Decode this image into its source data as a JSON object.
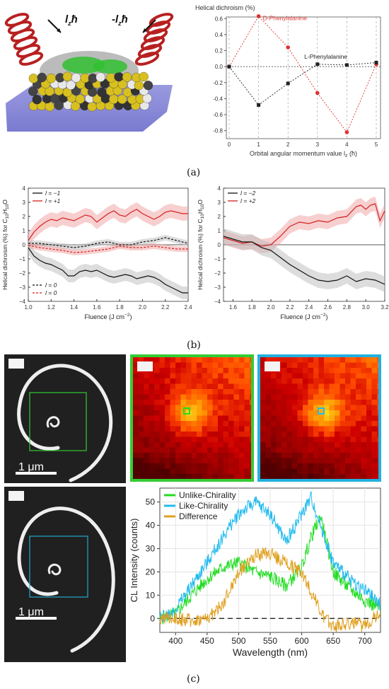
{
  "captions": {
    "a": "(a)",
    "b": "(b)",
    "c": "(c)"
  },
  "panel_a": {
    "illustration": {
      "left_label": "l",
      "left_label_sub": "z",
      "left_label_hbar": "ħ",
      "right_label": "-l",
      "right_label_sub": "z",
      "right_label_hbar": "ħ"
    },
    "chart_data": {
      "type": "line",
      "title": "Helical dichroism (%)",
      "xlabel": "Orbital angular momentum value l",
      "xlabel_sub": "z",
      "xlabel_unit": " (ħ)",
      "xlim": [
        0,
        5
      ],
      "ylim": [
        -0.9,
        0.62
      ],
      "x_ticks": [
        0,
        1,
        2,
        3,
        4,
        5
      ],
      "y_ticks": [
        -0.8,
        -0.6,
        -0.4,
        -0.2,
        0.0,
        0.2,
        0.4,
        0.6
      ],
      "y_tick_labels": [
        "-0.8",
        "-0.6",
        "-0.4",
        "-0.2",
        "0.0",
        "0.2",
        "0.4",
        "0.6"
      ],
      "series": [
        {
          "name": "D-Phenylalanine",
          "color": "#e03030",
          "x": [
            0,
            1,
            2,
            3,
            4,
            5
          ],
          "y": [
            0.0,
            0.63,
            0.24,
            -0.33,
            -0.82,
            0.03
          ]
        },
        {
          "name": "L-Phenylalanine",
          "color": "#222222",
          "x": [
            0,
            1,
            2,
            3,
            4,
            5
          ],
          "y": [
            0.0,
            -0.48,
            -0.21,
            0.03,
            0.02,
            0.05
          ]
        }
      ],
      "legend": [
        {
          "text": "D-Phenylalanine",
          "color": "#e03030"
        },
        {
          "text": "L-Phenylalanine",
          "color": "#222222"
        }
      ]
    }
  },
  "panel_b": {
    "charts": [
      {
        "type": "line",
        "ylabel": "Helical dichroism (%) for C",
        "ylabel_sub1": "10",
        "ylabel_mid": "H",
        "ylabel_sub2": "10",
        "ylabel_end": "O",
        "xlabel": "Fluence (J cm",
        "xlabel_sup": "−2",
        "xlabel_end": ")",
        "xlim": [
          1.0,
          2.4
        ],
        "ylim": [
          -4,
          4
        ],
        "x_ticks": [
          1.0,
          1.2,
          1.4,
          1.6,
          1.8,
          2.0,
          2.2,
          2.4
        ],
        "x_tick_labels": [
          "1.0",
          "1.2",
          "1.4",
          "1.6",
          "1.8",
          "2.0",
          "2.2",
          "2.4"
        ],
        "y_ticks": [
          -4,
          -3,
          -2,
          -1,
          0,
          1,
          2,
          3,
          4
        ],
        "y_tick_labels": [
          "−4",
          "−3",
          "−2",
          "−1",
          "0",
          "1",
          "2",
          "3",
          "4"
        ],
        "legend_top": [
          {
            "text": "l = −1",
            "color": "#111111"
          },
          {
            "text": "l = +1",
            "color": "#d42020"
          }
        ],
        "legend_bottom": [
          {
            "text": "l = 0",
            "color": "#111111"
          },
          {
            "text": "l = 0",
            "color": "#d42020"
          }
        ],
        "series": [
          {
            "color": "#d42020",
            "band": 0.5,
            "x": [
              1.0,
              1.05,
              1.1,
              1.15,
              1.2,
              1.25,
              1.3,
              1.35,
              1.4,
              1.45,
              1.5,
              1.55,
              1.6,
              1.65,
              1.7,
              1.75,
              1.8,
              1.85,
              1.9,
              1.95,
              2.0,
              2.05,
              2.1,
              2.15,
              2.2,
              2.25,
              2.3,
              2.35,
              2.4
            ],
            "y": [
              0.3,
              0.9,
              1.3,
              1.6,
              1.8,
              1.7,
              1.9,
              1.8,
              1.7,
              1.9,
              2.1,
              2.0,
              1.6,
              1.9,
              2.2,
              2.4,
              2.1,
              2.0,
              2.3,
              2.5,
              2.2,
              2.0,
              1.8,
              2.0,
              2.3,
              2.4,
              2.3,
              2.2,
              2.2
            ]
          },
          {
            "color": "#111111",
            "band": 0.45,
            "x": [
              1.0,
              1.05,
              1.1,
              1.15,
              1.2,
              1.25,
              1.3,
              1.35,
              1.4,
              1.45,
              1.5,
              1.55,
              1.6,
              1.65,
              1.7,
              1.75,
              1.8,
              1.85,
              1.9,
              1.95,
              2.0,
              2.05,
              2.1,
              2.15,
              2.2,
              2.25,
              2.3,
              2.35,
              2.4
            ],
            "y": [
              -0.2,
              -0.8,
              -1.1,
              -1.3,
              -1.4,
              -1.6,
              -1.8,
              -2.2,
              -2.2,
              -1.9,
              -1.8,
              -1.9,
              -1.8,
              -2.0,
              -2.2,
              -2.3,
              -2.2,
              -2.1,
              -2.2,
              -2.4,
              -2.3,
              -2.2,
              -2.3,
              -2.5,
              -2.8,
              -3.0,
              -3.2,
              -3.4,
              -3.4
            ]
          },
          {
            "color": "#111111",
            "dashed": true,
            "band": 0.2,
            "x": [
              1.0,
              1.1,
              1.2,
              1.3,
              1.4,
              1.5,
              1.6,
              1.7,
              1.8,
              1.9,
              2.0,
              2.1,
              2.2,
              2.3,
              2.4
            ],
            "y": [
              0.1,
              0.1,
              0.0,
              -0.1,
              -0.2,
              -0.1,
              0.1,
              0.2,
              0.0,
              0.0,
              0.2,
              0.3,
              0.5,
              0.3,
              0.1
            ]
          },
          {
            "color": "#d42020",
            "dashed": true,
            "band": 0.2,
            "x": [
              1.0,
              1.1,
              1.2,
              1.3,
              1.4,
              1.5,
              1.6,
              1.7,
              1.8,
              1.9,
              2.0,
              2.1,
              2.2,
              2.3,
              2.4
            ],
            "y": [
              -0.05,
              -0.2,
              -0.3,
              -0.4,
              -0.55,
              -0.5,
              -0.4,
              -0.3,
              -0.1,
              -0.2,
              -0.2,
              -0.1,
              -0.2,
              -0.3,
              -0.3
            ]
          }
        ]
      },
      {
        "type": "line",
        "ylabel": "Helical dichroism (%) for C",
        "ylabel_sub1": "10",
        "ylabel_mid": "H",
        "ylabel_sub2": "10",
        "ylabel_end": "O",
        "xlabel": "Fluence (J cm",
        "xlabel_sup": "−2",
        "xlabel_end": ")",
        "xlim": [
          1.5,
          3.2
        ],
        "ylim": [
          -4,
          4
        ],
        "x_ticks": [
          1.6,
          1.8,
          2.0,
          2.2,
          2.4,
          2.6,
          2.8,
          3.0,
          3.2
        ],
        "x_tick_labels": [
          "1.6",
          "1.8",
          "2.0",
          "2.2",
          "2.4",
          "2.6",
          "2.8",
          "3.0",
          "3.2"
        ],
        "y_ticks": [
          -4,
          -3,
          -2,
          -1,
          0,
          1,
          2,
          3,
          4
        ],
        "y_tick_labels": [
          "−4",
          "−3",
          "−2",
          "−1",
          "0",
          "1",
          "2",
          "3",
          "4"
        ],
        "legend_top": [
          {
            "text": "l = −2",
            "color": "#111111"
          },
          {
            "text": "l = +2",
            "color": "#d42020"
          }
        ],
        "series": [
          {
            "color": "#d42020",
            "band": 0.5,
            "x": [
              1.5,
              1.6,
              1.7,
              1.8,
              1.9,
              2.0,
              2.1,
              2.2,
              2.3,
              2.4,
              2.5,
              2.6,
              2.7,
              2.8,
              2.9,
              2.95,
              3.0,
              3.05,
              3.1,
              3.15,
              3.2
            ],
            "y": [
              0.5,
              0.3,
              0.1,
              0.2,
              -0.1,
              0.0,
              0.6,
              1.3,
              1.6,
              1.5,
              1.7,
              1.6,
              1.9,
              2.0,
              2.7,
              2.8,
              2.5,
              2.8,
              2.9,
              1.7,
              2.4
            ]
          },
          {
            "color": "#111111",
            "band": 0.55,
            "x": [
              1.5,
              1.6,
              1.7,
              1.8,
              1.9,
              2.0,
              2.1,
              2.2,
              2.3,
              2.4,
              2.5,
              2.6,
              2.7,
              2.8,
              2.9,
              3.0,
              3.1,
              3.2
            ],
            "y": [
              0.6,
              0.4,
              0.2,
              0.2,
              -0.2,
              -0.4,
              -0.9,
              -1.4,
              -1.8,
              -2.2,
              -2.5,
              -2.6,
              -2.5,
              -2.2,
              -2.6,
              -2.4,
              -2.5,
              -2.8
            ]
          }
        ]
      }
    ]
  },
  "panel_c": {
    "scale_bar_label": "1 μm",
    "chart_data": {
      "type": "line",
      "xlabel": "Wavelength (nm)",
      "ylabel": "CL Intensity (counts)",
      "xlim": [
        375,
        725
      ],
      "ylim": [
        -6,
        56
      ],
      "x_ticks": [
        400,
        450,
        500,
        550,
        600,
        650,
        700
      ],
      "y_ticks": [
        0,
        10,
        20,
        30,
        40,
        50
      ],
      "legend": [
        {
          "text": "Unlike-Chirality",
          "color": "#22dd22"
        },
        {
          "text": "Like-Chirality",
          "color": "#22bbee"
        },
        {
          "text": "Difference",
          "color": "#e0a020"
        }
      ],
      "series": [
        {
          "name": "Unlike-Chirality",
          "color": "#22dd22",
          "x": [
            375,
            400,
            425,
            450,
            475,
            500,
            525,
            550,
            575,
            600,
            615,
            630,
            650,
            675,
            700,
            725
          ],
          "y": [
            0,
            2,
            10,
            17,
            22,
            24,
            20,
            18,
            14,
            22,
            35,
            44,
            20,
            13,
            8,
            4
          ]
        },
        {
          "name": "Like-Chirality",
          "color": "#22bbee",
          "x": [
            375,
            400,
            425,
            450,
            475,
            500,
            525,
            550,
            575,
            590,
            600,
            615,
            630,
            650,
            675,
            700,
            725
          ],
          "y": [
            0,
            4,
            14,
            24,
            35,
            45,
            50,
            45,
            33,
            40,
            45,
            52,
            40,
            24,
            17,
            12,
            6
          ]
        },
        {
          "name": "Difference",
          "color": "#e0a020",
          "x": [
            375,
            400,
            425,
            450,
            475,
            500,
            525,
            550,
            575,
            600,
            620,
            635,
            650,
            675,
            700,
            725
          ],
          "y": [
            0,
            0,
            -1,
            0,
            6,
            20,
            27,
            28,
            24,
            20,
            9,
            0,
            -3,
            -2,
            -3,
            3
          ]
        }
      ]
    }
  }
}
